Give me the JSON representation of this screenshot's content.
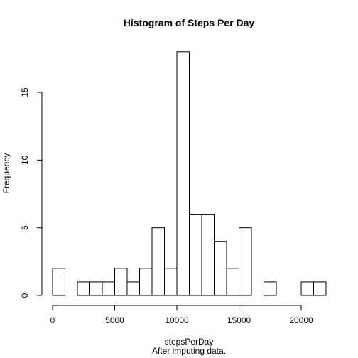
{
  "chart_data": {
    "type": "bar",
    "title": "Histogram of Steps Per Day",
    "xlabel": "stepsPerDay",
    "ylabel": "Frequency",
    "subtitle": "After imputing data.",
    "bin_width": 1000,
    "bin_starts": [
      0,
      1000,
      2000,
      3000,
      4000,
      5000,
      6000,
      7000,
      8000,
      9000,
      10000,
      11000,
      12000,
      13000,
      14000,
      15000,
      16000,
      17000,
      18000,
      19000,
      20000,
      21000
    ],
    "values": [
      2,
      0,
      1,
      1,
      1,
      2,
      1,
      2,
      5,
      2,
      18,
      6,
      6,
      4,
      2,
      5,
      0,
      1,
      0,
      0,
      1,
      1
    ],
    "x_ticks": [
      0,
      5000,
      10000,
      15000,
      20000
    ],
    "y_ticks": [
      0,
      5,
      10,
      15
    ],
    "xlim": [
      0,
      22000
    ],
    "ylim": [
      0,
      18
    ]
  }
}
